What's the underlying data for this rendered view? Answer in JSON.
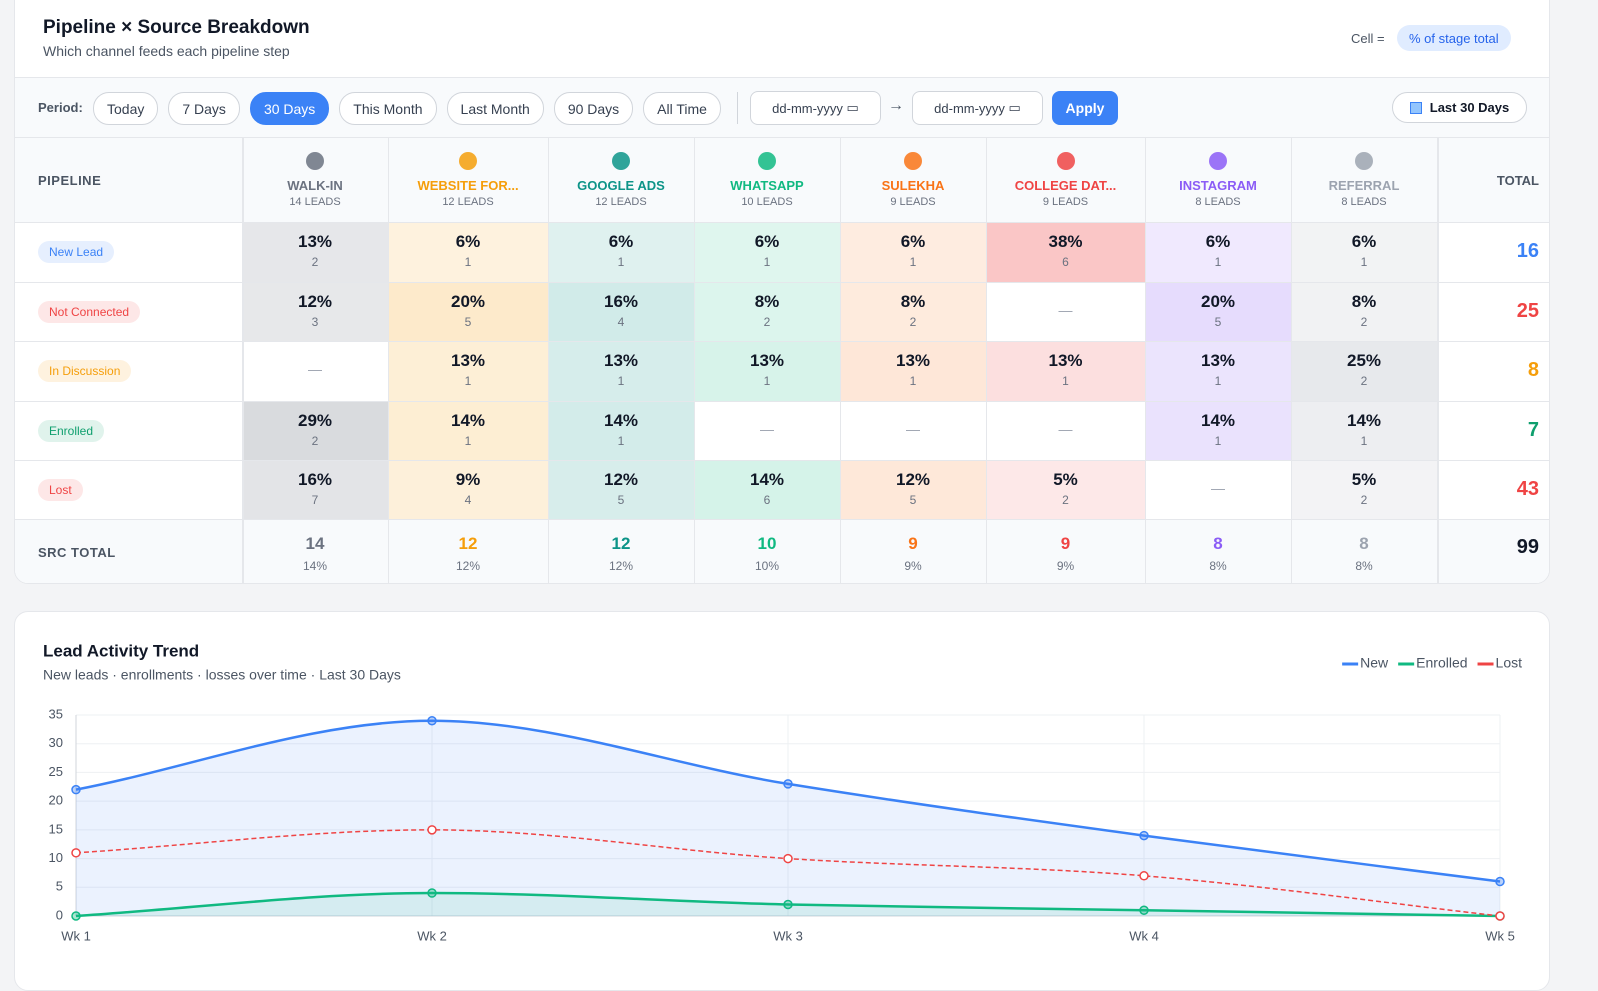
{
  "header": {
    "title": "Pipeline × Source Breakdown",
    "subtitle": "Which channel feeds each pipeline step",
    "cell_label": "Cell =",
    "cell_mode": "% of stage total"
  },
  "filters": {
    "period_label": "Period:",
    "options": [
      {
        "label": "Today",
        "active": false
      },
      {
        "label": "7 Days",
        "active": false
      },
      {
        "label": "30 Days",
        "active": true
      },
      {
        "label": "This Month",
        "active": false
      },
      {
        "label": "Last Month",
        "active": false
      },
      {
        "label": "90 Days",
        "active": false
      },
      {
        "label": "All Time",
        "active": false
      }
    ],
    "date_from": "dd-mm-yyyy",
    "arrow": "→",
    "date_to": "dd-mm-yyyy",
    "apply": "Apply",
    "range": "Last 30 Days"
  },
  "table": {
    "pipeline_header": "PIPELINE",
    "total_header": "TOTAL",
    "sources": [
      {
        "name": "WALK-IN",
        "leads": "14 LEADS",
        "color": "#6b7280"
      },
      {
        "name": "WEBSITE FOR...",
        "leads": "12 LEADS",
        "color": "#f59e0b"
      },
      {
        "name": "GOOGLE ADS",
        "leads": "12 LEADS",
        "color": "#0d9488"
      },
      {
        "name": "WHATSAPP",
        "leads": "10 LEADS",
        "color": "#10b981"
      },
      {
        "name": "SULEKHA",
        "leads": "9 LEADS",
        "color": "#f97316"
      },
      {
        "name": "COLLEGE DAT...",
        "leads": "9 LEADS",
        "color": "#ef4444"
      },
      {
        "name": "INSTAGRAM",
        "leads": "8 LEADS",
        "color": "#8b5cf6"
      },
      {
        "name": "REFERRAL",
        "leads": "8 LEADS",
        "color": "#9ca3af"
      }
    ],
    "rows": [
      {
        "stage": "New Lead",
        "color": "#3b82f6",
        "total": 16,
        "cells": [
          {
            "pct": "13%",
            "count": 2
          },
          {
            "pct": "6%",
            "count": 1
          },
          {
            "pct": "6%",
            "count": 1
          },
          {
            "pct": "6%",
            "count": 1
          },
          {
            "pct": "6%",
            "count": 1
          },
          {
            "pct": "38%",
            "count": 6
          },
          {
            "pct": "6%",
            "count": 1
          },
          {
            "pct": "6%",
            "count": 1
          }
        ]
      },
      {
        "stage": "Not Connected",
        "color": "#ef4444",
        "total": 25,
        "cells": [
          {
            "pct": "12%",
            "count": 3
          },
          {
            "pct": "20%",
            "count": 5
          },
          {
            "pct": "16%",
            "count": 4
          },
          {
            "pct": "8%",
            "count": 2
          },
          {
            "pct": "8%",
            "count": 2
          },
          {
            "pct": "—"
          },
          {
            "pct": "20%",
            "count": 5
          },
          {
            "pct": "8%",
            "count": 2
          }
        ]
      },
      {
        "stage": "In Discussion",
        "color": "#f59e0b",
        "total": 8,
        "cells": [
          {
            "pct": "—"
          },
          {
            "pct": "13%",
            "count": 1
          },
          {
            "pct": "13%",
            "count": 1
          },
          {
            "pct": "13%",
            "count": 1
          },
          {
            "pct": "13%",
            "count": 1
          },
          {
            "pct": "13%",
            "count": 1
          },
          {
            "pct": "13%",
            "count": 1
          },
          {
            "pct": "25%",
            "count": 2
          }
        ]
      },
      {
        "stage": "Enrolled",
        "color": "#0f9f6e",
        "total": 7,
        "cells": [
          {
            "pct": "29%",
            "count": 2
          },
          {
            "pct": "14%",
            "count": 1
          },
          {
            "pct": "14%",
            "count": 1
          },
          {
            "pct": "—"
          },
          {
            "pct": "—"
          },
          {
            "pct": "—"
          },
          {
            "pct": "14%",
            "count": 1
          },
          {
            "pct": "14%",
            "count": 1
          }
        ]
      },
      {
        "stage": "Lost",
        "color": "#ef4444",
        "total": 43,
        "cells": [
          {
            "pct": "16%",
            "count": 7
          },
          {
            "pct": "9%",
            "count": 4
          },
          {
            "pct": "12%",
            "count": 5
          },
          {
            "pct": "14%",
            "count": 6
          },
          {
            "pct": "12%",
            "count": 5
          },
          {
            "pct": "5%",
            "count": 2
          },
          {
            "pct": "—"
          },
          {
            "pct": "5%",
            "count": 2
          }
        ]
      }
    ],
    "footer": {
      "label": "SRC TOTAL",
      "grand_total": 99,
      "totals": [
        {
          "value": 14,
          "pct": "14%"
        },
        {
          "value": 12,
          "pct": "12%"
        },
        {
          "value": 12,
          "pct": "12%"
        },
        {
          "value": 10,
          "pct": "10%"
        },
        {
          "value": 9,
          "pct": "9%"
        },
        {
          "value": 9,
          "pct": "9%"
        },
        {
          "value": 8,
          "pct": "8%"
        },
        {
          "value": 8,
          "pct": "8%"
        }
      ]
    }
  },
  "chart_data": {
    "type": "line",
    "title": "Lead Activity Trend",
    "subtitle": "New leads · enrollments · losses over time · Last 30 Days",
    "categories": [
      "Wk 1",
      "Wk 2",
      "Wk 3",
      "Wk 4",
      "Wk 5"
    ],
    "series": [
      {
        "name": "New",
        "color": "#3b82f6",
        "values": [
          22,
          34,
          23,
          14,
          6
        ],
        "area": true,
        "dashed": false
      },
      {
        "name": "Enrolled",
        "color": "#10b981",
        "values": [
          0,
          4,
          2,
          1,
          0
        ],
        "area": true,
        "dashed": false
      },
      {
        "name": "Lost",
        "color": "#ef4444",
        "values": [
          11,
          15,
          10,
          7,
          0
        ],
        "area": false,
        "dashed": true
      }
    ],
    "ylim": [
      0,
      35
    ],
    "yticks": [
      0,
      5,
      10,
      15,
      20,
      25,
      30,
      35
    ],
    "grid": true,
    "legend": "top-right"
  }
}
